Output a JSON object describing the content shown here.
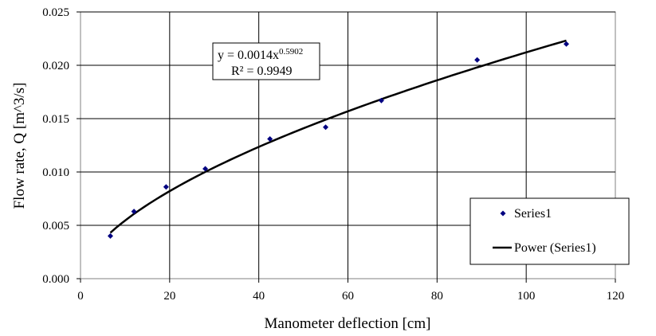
{
  "chart_data": {
    "type": "scatter",
    "xlabel": "Manometer deflection [cm]",
    "ylabel": "Flow rate, Q [m^3/s]",
    "xlim": [
      0,
      120
    ],
    "ylim": [
      0,
      0.025
    ],
    "x_ticks": [
      "0",
      "20",
      "40",
      "60",
      "80",
      "100",
      "120"
    ],
    "y_ticks": [
      "0.000",
      "0.005",
      "0.010",
      "0.015",
      "0.020",
      "0.025"
    ],
    "grid": true,
    "series": [
      {
        "name": "Series1",
        "marker": "diamond",
        "color": "#000080",
        "x": [
          6.7,
          12.0,
          19.2,
          28.0,
          42.5,
          55.0,
          67.5,
          89.0,
          109.0
        ],
        "y": [
          0.004,
          0.0063,
          0.0086,
          0.0103,
          0.0131,
          0.0142,
          0.0167,
          0.0205,
          0.022
        ]
      }
    ],
    "trendline": {
      "name": "Power (Series1)",
      "type": "power",
      "coefficient": 0.0014,
      "exponent": 0.5902,
      "x_range": [
        6.7,
        109.0
      ],
      "color": "#000000"
    },
    "equation": {
      "prefix": "y = 0.0014x",
      "exponent": "0.5902",
      "r_squared": "R² = 0.9949"
    },
    "legend": {
      "placement": "bottom-right",
      "entries": [
        "Series1",
        "Power (Series1)"
      ]
    }
  }
}
